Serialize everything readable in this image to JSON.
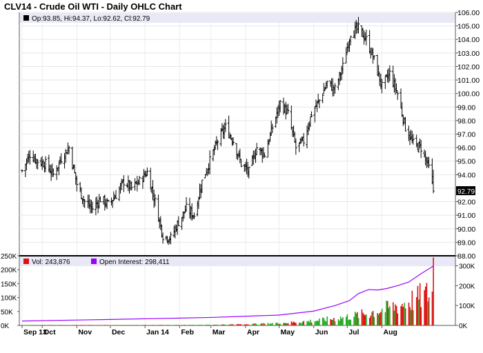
{
  "chart_data": [
    {
      "type": "ohlc",
      "title": "CLV14 - Crude Oil WTI - Daily OHLC Chart",
      "legend": "Op:93.85, Hi:94.37, Lo:92.62, Cl:92.79",
      "last_price_label": "92.79",
      "ylim": [
        88,
        106
      ],
      "y_ticks": [
        "106.00",
        "105.00",
        "104.00",
        "103.00",
        "102.00",
        "101.00",
        "100.00",
        "99.00",
        "98.00",
        "97.00",
        "96.00",
        "95.00",
        "94.00",
        "93.00",
        "92.00",
        "91.00",
        "90.00",
        "89.00",
        "88.00"
      ],
      "x_ticks": [
        "Sep 13",
        "Oct",
        "Nov",
        "Dec",
        "Jan 14",
        "Feb",
        "Mar",
        "Apr",
        "May",
        "Jun",
        "Jul",
        "Aug"
      ],
      "close_path": [
        [
          "2013-09-13",
          94.3
        ],
        [
          "2013-09-20",
          95.5
        ],
        [
          "2013-09-27",
          95.0
        ],
        [
          "2013-10-04",
          94.8
        ],
        [
          "2013-10-11",
          94.0
        ],
        [
          "2013-10-18",
          95.2
        ],
        [
          "2013-10-25",
          96.0
        ],
        [
          "2013-11-01",
          93.3
        ],
        [
          "2013-11-08",
          92.0
        ],
        [
          "2013-11-15",
          91.5
        ],
        [
          "2013-11-22",
          92.2
        ],
        [
          "2013-11-29",
          91.8
        ],
        [
          "2013-12-06",
          92.5
        ],
        [
          "2013-12-13",
          93.5
        ],
        [
          "2013-12-20",
          93.0
        ],
        [
          "2013-12-27",
          93.5
        ],
        [
          "2014-01-03",
          94.2
        ],
        [
          "2014-01-10",
          92.0
        ],
        [
          "2014-01-17",
          89.5
        ],
        [
          "2014-01-24",
          89.3
        ],
        [
          "2014-01-31",
          90.5
        ],
        [
          "2014-02-07",
          91.5
        ],
        [
          "2014-02-14",
          91.0
        ],
        [
          "2014-02-21",
          93.5
        ],
        [
          "2014-02-28",
          95.0
        ],
        [
          "2014-03-07",
          96.5
        ],
        [
          "2014-03-14",
          97.5
        ],
        [
          "2014-03-21",
          96.5
        ],
        [
          "2014-03-28",
          94.8
        ],
        [
          "2014-04-04",
          94.2
        ],
        [
          "2014-04-11",
          96.0
        ],
        [
          "2014-04-18",
          95.5
        ],
        [
          "2014-04-25",
          97.5
        ],
        [
          "2014-05-02",
          99.3
        ],
        [
          "2014-05-09",
          98.5
        ],
        [
          "2014-05-16",
          96.0
        ],
        [
          "2014-05-23",
          96.5
        ],
        [
          "2014-05-30",
          98.5
        ],
        [
          "2014-06-06",
          99.5
        ],
        [
          "2014-06-13",
          100.8
        ],
        [
          "2014-06-20",
          100.3
        ],
        [
          "2014-06-27",
          102.0
        ],
        [
          "2014-07-04",
          104.5
        ],
        [
          "2014-07-11",
          104.8
        ],
        [
          "2014-07-18",
          104.0
        ],
        [
          "2014-07-25",
          102.5
        ],
        [
          "2014-08-01",
          100.5
        ],
        [
          "2014-08-08",
          101.5
        ],
        [
          "2014-08-15",
          100.0
        ],
        [
          "2014-08-22",
          97.5
        ],
        [
          "2014-08-29",
          96.3
        ],
        [
          "2014-09-05",
          96.0
        ],
        [
          "2014-09-12",
          94.5
        ],
        [
          "2014-09-16",
          92.79
        ]
      ]
    },
    {
      "type": "bar+line",
      "volume_label": "Vol: 243,876",
      "oi_label": "Open Interest: 298,411",
      "left_ylim": [
        0,
        250000
      ],
      "right_ylim": [
        0,
        350000
      ],
      "left_ticks": [
        "250K",
        "200K",
        "150K",
        "100K",
        "50K",
        "0K"
      ],
      "right_ticks": [
        "300K",
        "200K",
        "100K",
        "0K"
      ],
      "oi_path": [
        [
          "2013-09-13",
          22000
        ],
        [
          "2013-12-01",
          30000
        ],
        [
          "2014-03-01",
          40000
        ],
        [
          "2014-05-01",
          52000
        ],
        [
          "2014-06-01",
          72000
        ],
        [
          "2014-06-20",
          100000
        ],
        [
          "2014-07-03",
          125000
        ],
        [
          "2014-07-11",
          160000
        ],
        [
          "2014-07-20",
          180000
        ],
        [
          "2014-07-28",
          178000
        ],
        [
          "2014-08-05",
          185000
        ],
        [
          "2014-08-15",
          200000
        ],
        [
          "2014-08-25",
          218000
        ],
        [
          "2014-09-05",
          260000
        ],
        [
          "2014-09-16",
          298411
        ]
      ],
      "last_volume": 243876,
      "volume_color": "#dd1111",
      "oi_color": "#9900ff"
    }
  ]
}
